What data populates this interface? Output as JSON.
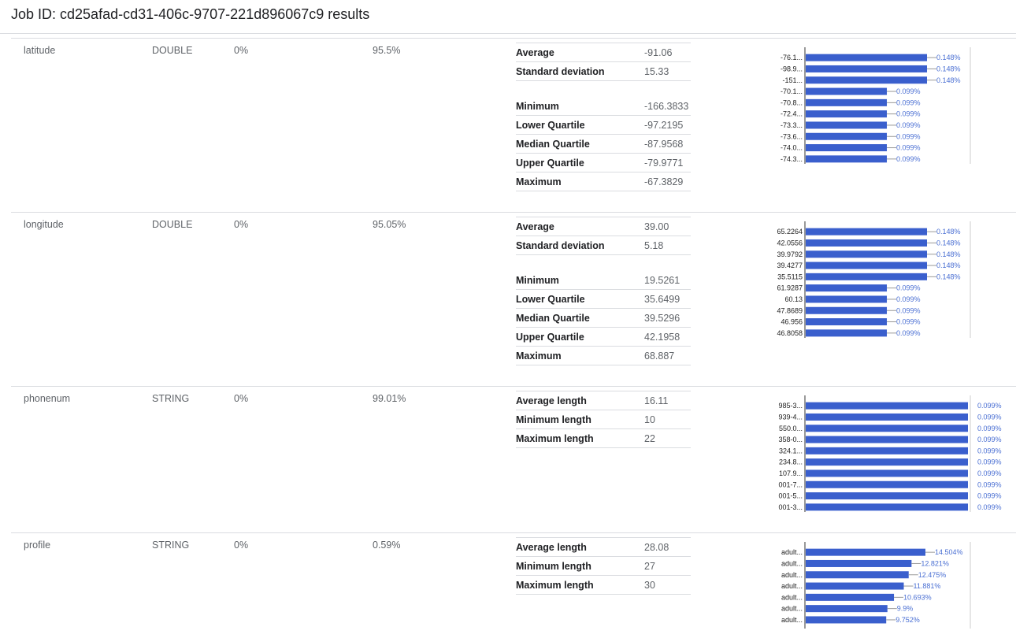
{
  "page": {
    "title": "Job ID: cd25afad-cd31-406c-9707-221d896067c9 results"
  },
  "colors": {
    "bar": "#3a5fcd",
    "bar_label": "#4a6fd3",
    "divider": "#dadce0"
  },
  "columns": [
    {
      "name": "latitude",
      "type": "DOUBLE",
      "null_pct": "0%",
      "unique_pct": "95.5%",
      "stats": [
        {
          "label": "Average",
          "value": "-91.06"
        },
        {
          "label": "Standard deviation",
          "value": "15.33"
        },
        {
          "label": "Minimum",
          "value": "-166.3833"
        },
        {
          "label": "Lower Quartile",
          "value": "-97.2195"
        },
        {
          "label": "Median Quartile",
          "value": "-87.9568"
        },
        {
          "label": "Upper Quartile",
          "value": "-79.9771"
        },
        {
          "label": "Maximum",
          "value": "-67.3829"
        }
      ],
      "chart_data": {
        "type": "bar",
        "orientation": "horizontal",
        "categories": [
          "-76.1...",
          "-98.9...",
          "-151...",
          "-70.1...",
          "-70.8...",
          "-72.4...",
          "-73.3...",
          "-73.6...",
          "-74.0...",
          "-74.3..."
        ],
        "values": [
          0.148,
          0.148,
          0.148,
          0.099,
          0.099,
          0.099,
          0.099,
          0.099,
          0.099,
          0.099
        ],
        "labels": [
          "0.148%",
          "0.148%",
          "0.148%",
          "0.099%",
          "0.099%",
          "0.099%",
          "0.099%",
          "0.099%",
          "0.099%",
          "0.099%"
        ]
      }
    },
    {
      "name": "longitude",
      "type": "DOUBLE",
      "null_pct": "0%",
      "unique_pct": "95.05%",
      "stats": [
        {
          "label": "Average",
          "value": "39.00"
        },
        {
          "label": "Standard deviation",
          "value": "5.18"
        },
        {
          "label": "Minimum",
          "value": "19.5261"
        },
        {
          "label": "Lower Quartile",
          "value": "35.6499"
        },
        {
          "label": "Median Quartile",
          "value": "39.5296"
        },
        {
          "label": "Upper Quartile",
          "value": "42.1958"
        },
        {
          "label": "Maximum",
          "value": "68.887"
        }
      ],
      "chart_data": {
        "type": "bar",
        "orientation": "horizontal",
        "categories": [
          "65.2264",
          "42.0556",
          "39.9792",
          "39.4277",
          "35.5115",
          "61.9287",
          "60.13",
          "47.8689",
          "46.956",
          "46.8058"
        ],
        "values": [
          0.148,
          0.148,
          0.148,
          0.148,
          0.148,
          0.099,
          0.099,
          0.099,
          0.099,
          0.099
        ],
        "labels": [
          "0.148%",
          "0.148%",
          "0.148%",
          "0.148%",
          "0.148%",
          "0.099%",
          "0.099%",
          "0.099%",
          "0.099%",
          "0.099%"
        ]
      }
    },
    {
      "name": "phonenum",
      "type": "STRING",
      "null_pct": "0%",
      "unique_pct": "99.01%",
      "stats": [
        {
          "label": "Average length",
          "value": "16.11"
        },
        {
          "label": "Minimum length",
          "value": "10"
        },
        {
          "label": "Maximum length",
          "value": "22"
        }
      ],
      "chart_data": {
        "type": "bar",
        "orientation": "horizontal",
        "categories": [
          "985-3...",
          "939-4...",
          "550.0...",
          "358-0...",
          "324.1...",
          "234.8...",
          "107.9...",
          "001-7...",
          "001-5...",
          "001-3..."
        ],
        "values": [
          0.099,
          0.099,
          0.099,
          0.099,
          0.099,
          0.099,
          0.099,
          0.099,
          0.099,
          0.099
        ],
        "labels": [
          "0.099%",
          "0.099%",
          "0.099%",
          "0.099%",
          "0.099%",
          "0.099%",
          "0.099%",
          "0.099%",
          "0.099%",
          "0.099%"
        ]
      }
    },
    {
      "name": "profile",
      "type": "STRING",
      "null_pct": "0%",
      "unique_pct": "0.59%",
      "stats": [
        {
          "label": "Average length",
          "value": "28.08"
        },
        {
          "label": "Minimum length",
          "value": "27"
        },
        {
          "label": "Maximum length",
          "value": "30"
        }
      ],
      "chart_data": {
        "type": "bar",
        "orientation": "horizontal",
        "categories": [
          "adult...",
          "adult...",
          "adult...",
          "adult...",
          "adult...",
          "adult...",
          "adult..."
        ],
        "values": [
          14.504,
          12.821,
          12.475,
          11.881,
          10.693,
          9.9,
          9.752
        ],
        "labels": [
          "14.504%",
          "12.821%",
          "12.475%",
          "11.881%",
          "10.693%",
          "9.9%",
          "9.752%"
        ]
      }
    }
  ]
}
